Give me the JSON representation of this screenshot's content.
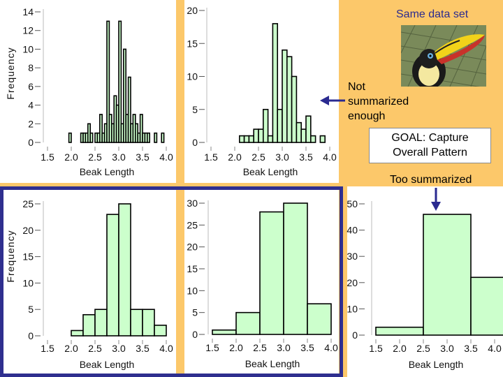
{
  "annotations": {
    "same_data": "Same data set",
    "not_summarized": [
      "Not",
      "summarized",
      "enough"
    ],
    "goal": [
      "GOAL:  Capture",
      "Overall Pattern"
    ],
    "too_summarized": "Too summarized"
  },
  "colors": {
    "background": "#fcc86a",
    "bar_fill": "#ccffcc",
    "frame": "#2f2f8f",
    "same_data_text": "#2b2b8f",
    "arrow": "#2a2a90"
  },
  "photo": {
    "icon": "toucan-photo"
  },
  "chart_data": [
    {
      "type": "bar",
      "xlabel": "Beak Length",
      "ylabel": "Frequency",
      "xlim": [
        1.5,
        4.0
      ],
      "ylim": [
        0,
        14
      ],
      "xticks": [
        "1.5",
        "2.0",
        "2.5",
        "3.0",
        "3.5",
        "4.0"
      ],
      "yticks": [
        "0",
        "2",
        "4",
        "6",
        "8",
        "10",
        "12",
        "14"
      ],
      "bin_width": 0.05,
      "bins": [
        [
          1.95,
          1
        ],
        [
          2.2,
          1
        ],
        [
          2.25,
          1
        ],
        [
          2.3,
          1
        ],
        [
          2.35,
          2
        ],
        [
          2.4,
          1
        ],
        [
          2.5,
          1
        ],
        [
          2.55,
          1
        ],
        [
          2.6,
          3
        ],
        [
          2.65,
          1
        ],
        [
          2.7,
          2
        ],
        [
          2.75,
          13
        ],
        [
          2.8,
          3
        ],
        [
          2.85,
          2
        ],
        [
          2.9,
          5
        ],
        [
          2.95,
          4
        ],
        [
          3.0,
          13
        ],
        [
          3.05,
          2
        ],
        [
          3.1,
          10
        ],
        [
          3.15,
          3
        ],
        [
          3.2,
          7
        ],
        [
          3.25,
          2
        ],
        [
          3.3,
          3
        ],
        [
          3.35,
          2
        ],
        [
          3.4,
          1
        ],
        [
          3.45,
          3
        ],
        [
          3.5,
          1
        ],
        [
          3.55,
          1
        ],
        [
          3.6,
          1
        ],
        [
          3.75,
          1
        ],
        [
          3.9,
          1
        ]
      ]
    },
    {
      "type": "bar",
      "xlabel": "Beak Length",
      "ylabel": "",
      "xlim": [
        1.5,
        4.0
      ],
      "ylim": [
        0,
        20
      ],
      "xticks": [
        "1.5",
        "2.0",
        "2.5",
        "3.0",
        "3.5",
        "4.0"
      ],
      "yticks": [
        "0",
        "5",
        "10",
        "15",
        "20"
      ],
      "bin_width": 0.1,
      "bins": [
        [
          2.1,
          1
        ],
        [
          2.2,
          1
        ],
        [
          2.3,
          1
        ],
        [
          2.4,
          2
        ],
        [
          2.5,
          2
        ],
        [
          2.6,
          5
        ],
        [
          2.7,
          1
        ],
        [
          2.8,
          18
        ],
        [
          2.9,
          5
        ],
        [
          3.0,
          14
        ],
        [
          3.1,
          13
        ],
        [
          3.2,
          10
        ],
        [
          3.3,
          3
        ],
        [
          3.4,
          2
        ],
        [
          3.5,
          4
        ],
        [
          3.6,
          1
        ],
        [
          3.8,
          1
        ]
      ]
    },
    {
      "type": "bar",
      "xlabel": "Beak Length",
      "ylabel": "Frequency",
      "xlim": [
        1.5,
        4.0
      ],
      "ylim": [
        0,
        25
      ],
      "xticks": [
        "1.5",
        "2.0",
        "2.5",
        "3.0",
        "3.5",
        "4.0"
      ],
      "yticks": [
        "0",
        "5",
        "10",
        "15",
        "20",
        "25"
      ],
      "bin_width": 0.25,
      "bins": [
        [
          2.0,
          1
        ],
        [
          2.25,
          4
        ],
        [
          2.5,
          5
        ],
        [
          2.75,
          23
        ],
        [
          3.0,
          25
        ],
        [
          3.25,
          5
        ],
        [
          3.5,
          5
        ],
        [
          3.75,
          2
        ]
      ]
    },
    {
      "type": "bar",
      "xlabel": "Beak Length",
      "ylabel": "",
      "xlim": [
        1.5,
        4.0
      ],
      "ylim": [
        0,
        30
      ],
      "xticks": [
        "1.5",
        "2.0",
        "2.5",
        "3.0",
        "3.5",
        "4.0"
      ],
      "yticks": [
        "0",
        "5",
        "10",
        "15",
        "20",
        "25",
        "30"
      ],
      "bin_width": 0.5,
      "bins": [
        [
          1.5,
          1
        ],
        [
          2.0,
          5
        ],
        [
          2.5,
          28
        ],
        [
          3.0,
          30
        ],
        [
          3.5,
          7
        ]
      ]
    },
    {
      "type": "bar",
      "xlabel": "Beak Length",
      "ylabel": "",
      "xlim": [
        1.5,
        4.0
      ],
      "ylim": [
        0,
        50
      ],
      "xticks": [
        "1.5",
        "2.0",
        "2.5",
        "3.0",
        "3.5",
        "4.0"
      ],
      "yticks": [
        "0",
        "10",
        "20",
        "30",
        "40",
        "50"
      ],
      "bin_width": 1.0,
      "bins": [
        [
          1.5,
          3
        ],
        [
          2.5,
          46
        ],
        [
          3.5,
          22
        ]
      ]
    }
  ]
}
